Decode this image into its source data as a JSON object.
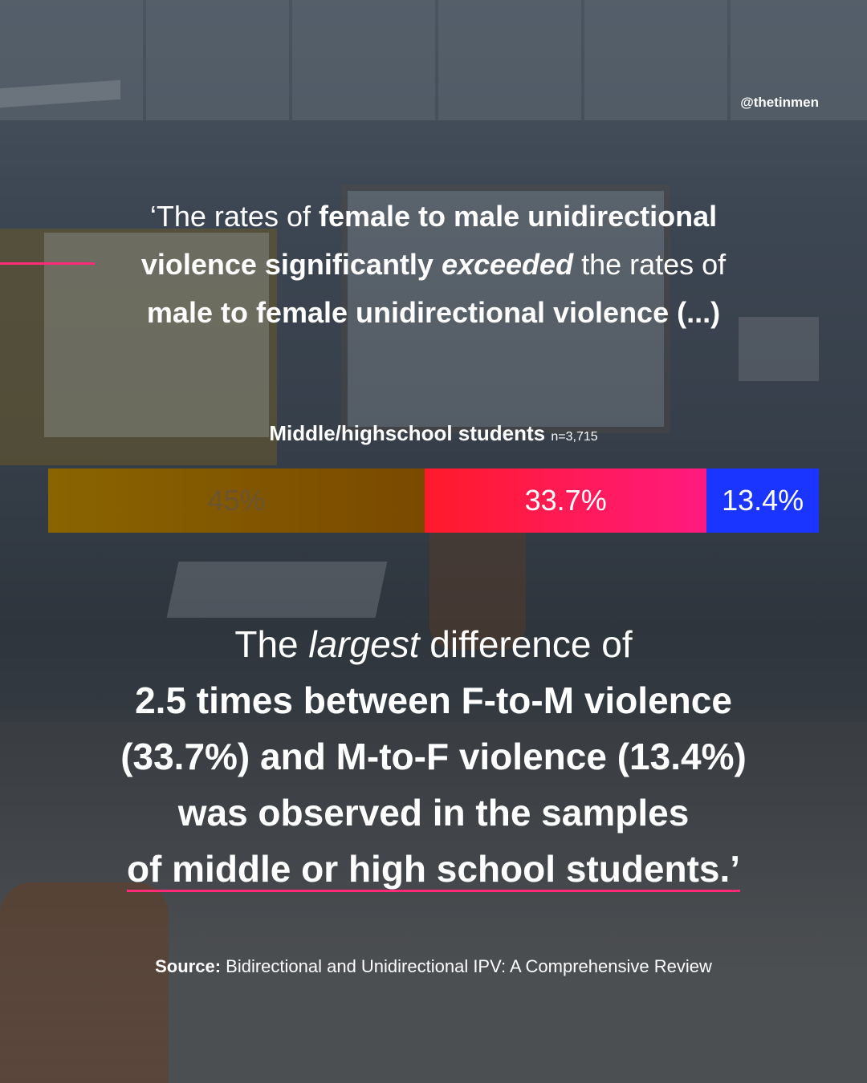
{
  "handle": "@thetinmen",
  "quote": {
    "l1_a": "‘The rates of ",
    "l1_b": "female to male unidirectional",
    "l2_a": "violence significantly ",
    "l2_b": "exceeded",
    "l2_c": " the rates of",
    "l3": "male to female unidirectional violence (...)"
  },
  "chart_data": {
    "type": "bar",
    "title": "Middle/highschool students",
    "subtitle": "n=3,715",
    "series": [
      {
        "value": 45,
        "label": "45%",
        "color": "#8a5c00",
        "text_color": "#6a5530"
      },
      {
        "value": 33.7,
        "label": "33.7%",
        "color": "#ff1a4a",
        "text_color": "#ffffff"
      },
      {
        "value": 13.4,
        "label": "13.4%",
        "color": "#1a35ff",
        "text_color": "#ffffff"
      }
    ]
  },
  "conclusion": {
    "l1_a": "The ",
    "l1_b": "largest",
    "l1_c": " difference of",
    "l2": "2.5 times between F-to-M violence",
    "l3": "(33.7%) and M-to-F violence (13.4%)",
    "l4": "was observed in the samples",
    "l5": "of middle or high school students.’"
  },
  "source": {
    "label": "Source:",
    "text": " Bidirectional and Unidirectional IPV: A Comprehensive Review"
  },
  "colors": {
    "accent": "#ff2a78",
    "female_to_male": "#ff1a4a",
    "male_to_female": "#1a35ff",
    "bidirectional": "#8a5c00"
  }
}
